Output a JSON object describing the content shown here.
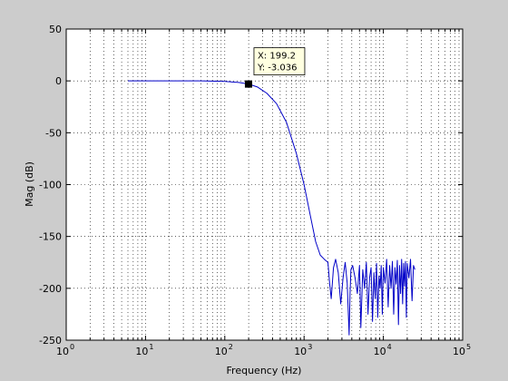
{
  "chart_data": {
    "type": "line",
    "xscale": "log",
    "xlim": [
      1,
      100000
    ],
    "ylim": [
      -250,
      50
    ],
    "xlabel": "Frequency (Hz)",
    "ylabel": "Mag (dB)",
    "grid": true,
    "x_ticks": [
      {
        "value": 1,
        "base": "10",
        "exp": "0"
      },
      {
        "value": 10,
        "base": "10",
        "exp": "1"
      },
      {
        "value": 100,
        "base": "10",
        "exp": "2"
      },
      {
        "value": 1000,
        "base": "10",
        "exp": "3"
      },
      {
        "value": 10000,
        "base": "10",
        "exp": "4"
      },
      {
        "value": 100000,
        "base": "10",
        "exp": "5"
      }
    ],
    "y_ticks": [
      {
        "value": 50,
        "label": "50"
      },
      {
        "value": 0,
        "label": "0"
      },
      {
        "value": -50,
        "label": "-50"
      },
      {
        "value": -100,
        "label": "-100"
      },
      {
        "value": -150,
        "label": "-150"
      },
      {
        "value": -200,
        "label": "-200"
      },
      {
        "value": -250,
        "label": "-250"
      }
    ],
    "series": [
      {
        "color": "#0000c8",
        "x": [
          6,
          10,
          20,
          50,
          100,
          150,
          199.2,
          260,
          340,
          450,
          600,
          800,
          1000,
          1200,
          1400,
          1600,
          1800,
          2000,
          2100,
          2200,
          2350,
          2500,
          2700,
          2900,
          3100,
          3300,
          3500,
          3700,
          3800,
          3900,
          4100,
          4400,
          4700,
          5000,
          5200,
          5500,
          5800,
          6100,
          6400,
          6700,
          7000,
          7300,
          7600,
          7900,
          8200,
          8500,
          8800,
          9100,
          9400,
          9700,
          10000,
          10500,
          11000,
          11500,
          12000,
          12500,
          13000,
          13500,
          14000,
          14500,
          15000,
          15500,
          16000,
          16500,
          17000,
          17500,
          18000,
          18500,
          19000,
          19500,
          20000,
          21000,
          22000,
          23000,
          24000,
          25000
        ],
        "y": [
          0,
          0,
          0,
          0,
          -0.5,
          -1.5,
          -3.036,
          -6,
          -12,
          -22,
          -40,
          -70,
          -100,
          -130,
          -155,
          -168,
          -172,
          -175,
          -195,
          -210,
          -180,
          -172,
          -185,
          -215,
          -190,
          -175,
          -195,
          -245,
          -205,
          -182,
          -178,
          -190,
          -205,
          -178,
          -238,
          -182,
          -200,
          -175,
          -225,
          -190,
          -180,
          -232,
          -185,
          -210,
          -176,
          -228,
          -188,
          -200,
          -178,
          -225,
          -180,
          -195,
          -172,
          -218,
          -178,
          -200,
          -174,
          -225,
          -180,
          -196,
          -173,
          -235,
          -178,
          -205,
          -172,
          -215,
          -176,
          -198,
          -174,
          -228,
          -176,
          -190,
          -172,
          -212,
          -178,
          -182
        ]
      }
    ],
    "annotation": {
      "x": 199.2,
      "y": -3.036,
      "x_text": "X: 199.2",
      "y_text": "Y: -3.036"
    }
  }
}
